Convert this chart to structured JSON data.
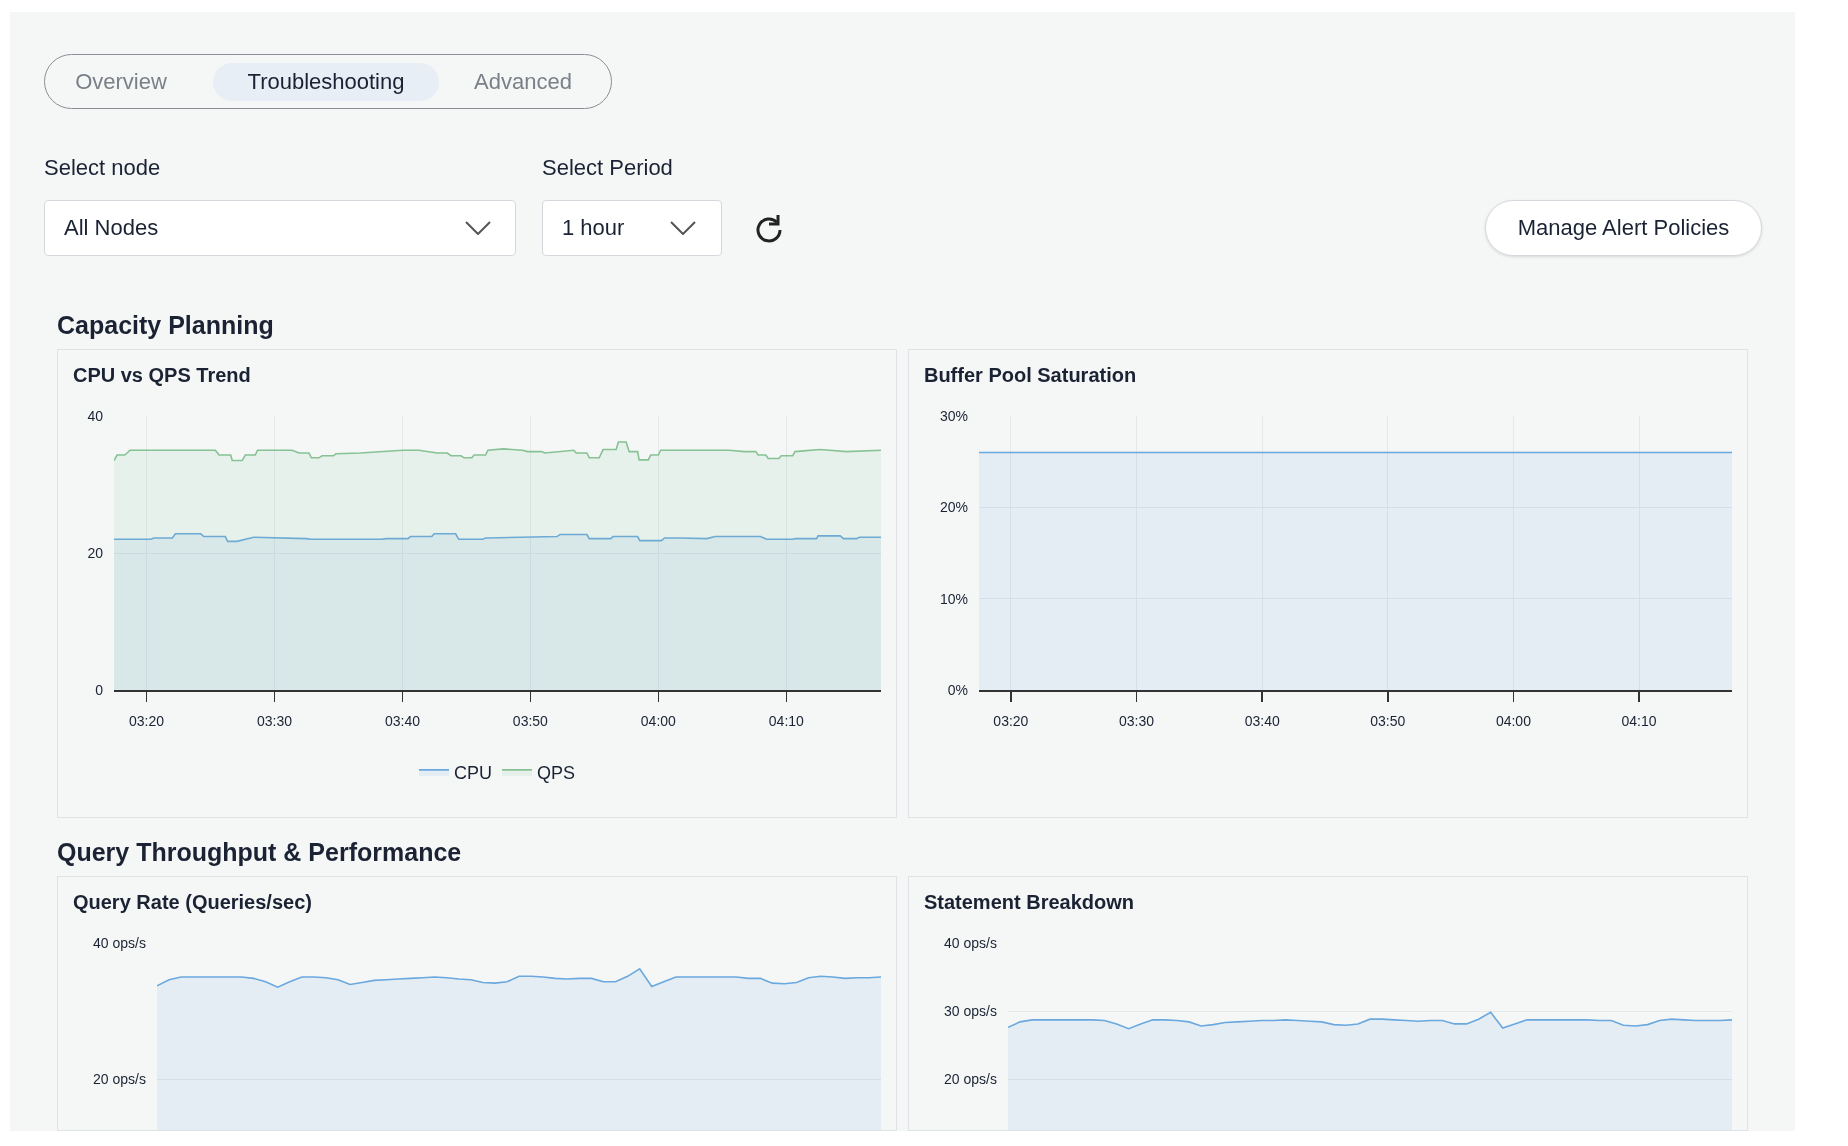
{
  "chart_data": [
    {
      "type": "other",
      "annotations": [
        "Overview",
        "Troubleshooting",
        "Advanced",
        "Select node",
        "All Nodes",
        "Select Period",
        "1 hour",
        "Manage Alert Policies",
        "Capacity Planning",
        "Query Throughput & Performance"
      ]
    },
    {
      "type": "area",
      "title": "CPU vs QPS Trend",
      "xlim": [
        3.291,
        4.29
      ],
      "xticks": [
        {
          "value": 3.3333,
          "label": "03:20"
        },
        {
          "value": 3.5,
          "label": "03:30"
        },
        {
          "value": 3.6667,
          "label": "03:40"
        },
        {
          "value": 3.8333,
          "label": "03:50"
        },
        {
          "value": 4,
          "label": "04:00"
        },
        {
          "value": 4.1667,
          "label": "04:10"
        }
      ],
      "ylim": [
        0,
        40
      ],
      "yticks": [
        0,
        20,
        40
      ],
      "grid": true,
      "legend": "bottom",
      "series": [
        {
          "name": "CPU",
          "color": "#6aa8de",
          "x": [
            3.291,
            3.339,
            3.343,
            3.367,
            3.371,
            3.404,
            3.408,
            3.436,
            3.439,
            3.451,
            3.473,
            3.541,
            3.548,
            3.639,
            3.646,
            3.674,
            3.677,
            3.705,
            3.708,
            3.736,
            3.74,
            3.771,
            3.775,
            3.868,
            3.872,
            3.907,
            3.91,
            3.938,
            3.941,
            3.973,
            3.976,
            4.004,
            4.008,
            4.029,
            4.063,
            4.074,
            4.133,
            4.141,
            4.175,
            4.178,
            4.206,
            4.208,
            4.237,
            4.241,
            4.258,
            4.262,
            4.29
          ],
          "values": [
            22.0,
            22.0,
            22.2,
            22.2,
            22.8,
            22.8,
            22.4,
            22.4,
            21.7,
            21.7,
            22.3,
            22.1,
            22.0,
            22.0,
            22.1,
            22.1,
            22.4,
            22.4,
            22.8,
            22.8,
            22.0,
            22.0,
            22.2,
            22.4,
            22.7,
            22.7,
            22.1,
            22.1,
            22.4,
            22.4,
            21.8,
            21.8,
            22.2,
            22.2,
            22.1,
            22.4,
            22.4,
            22.0,
            22.0,
            22.1,
            22.1,
            22.5,
            22.5,
            22.1,
            22.1,
            22.3,
            22.3
          ]
        },
        {
          "name": "QPS",
          "color": "#86c293",
          "x": [
            3.291,
            3.295,
            3.305,
            3.312,
            3.423,
            3.428,
            3.443,
            3.445,
            3.458,
            3.462,
            3.475,
            3.478,
            3.523,
            3.532,
            3.545,
            3.548,
            3.558,
            3.562,
            3.577,
            3.58,
            3.612,
            3.667,
            3.688,
            3.712,
            3.725,
            3.73,
            3.743,
            3.747,
            3.757,
            3.76,
            3.775,
            3.778,
            3.798,
            3.823,
            3.83,
            3.848,
            3.852,
            3.89,
            3.893,
            3.907,
            3.91,
            3.923,
            3.928,
            3.945,
            3.948,
            3.958,
            3.962,
            3.973,
            3.975,
            3.987,
            3.99,
            4.0,
            4.003,
            4.092,
            4.112,
            4.127,
            4.13,
            4.14,
            4.143,
            4.157,
            4.16,
            4.175,
            4.178,
            4.21,
            4.223,
            4.245,
            4.29
          ],
          "values": [
            33.5,
            34.3,
            34.3,
            35.0,
            35.0,
            34.3,
            34.3,
            33.5,
            33.5,
            34.3,
            34.3,
            35.0,
            35.0,
            34.6,
            34.6,
            33.9,
            33.9,
            34.2,
            34.2,
            34.5,
            34.6,
            35.0,
            35.0,
            34.6,
            34.6,
            34.2,
            34.2,
            33.9,
            33.9,
            34.3,
            34.3,
            35.0,
            35.2,
            35.0,
            34.8,
            34.8,
            34.6,
            35.0,
            34.6,
            34.6,
            33.9,
            33.9,
            35.1,
            35.1,
            36.2,
            36.2,
            34.8,
            34.8,
            33.6,
            33.6,
            34.3,
            34.3,
            35.0,
            35.0,
            34.8,
            34.8,
            34.3,
            34.3,
            33.8,
            33.8,
            34.2,
            34.2,
            34.8,
            35.1,
            35.0,
            34.8,
            35.0
          ]
        }
      ]
    },
    {
      "type": "area",
      "title": "Buffer Pool Saturation",
      "xlim": [
        3.291,
        4.29
      ],
      "xticks": [
        {
          "value": 3.3333,
          "label": "03:20"
        },
        {
          "value": 3.5,
          "label": "03:30"
        },
        {
          "value": 3.6667,
          "label": "03:40"
        },
        {
          "value": 3.8333,
          "label": "03:50"
        },
        {
          "value": 4,
          "label": "04:00"
        },
        {
          "value": 4.1667,
          "label": "04:10"
        }
      ],
      "ylim": [
        0,
        30
      ],
      "yticks": [
        {
          "value": 0,
          "label": "0%"
        },
        {
          "value": 10,
          "label": "10%"
        },
        {
          "value": 20,
          "label": "20%"
        },
        {
          "value": 30,
          "label": "30%"
        }
      ],
      "grid": true,
      "series": [
        {
          "color": "#6aa8de",
          "x": [
            3.291,
            4.29
          ],
          "values": [
            26,
            26
          ]
        }
      ]
    },
    {
      "type": "area",
      "title": "Query Rate (Queries/sec)",
      "categories": [
        null,
        null,
        null,
        null,
        null,
        null,
        null,
        null,
        null,
        null,
        null,
        null,
        null,
        null,
        null,
        null,
        null,
        null,
        null,
        null,
        null,
        null,
        null,
        null,
        null,
        null,
        null,
        null,
        null,
        null,
        null,
        null,
        null,
        null,
        null,
        null,
        null,
        null,
        null,
        null,
        null,
        null,
        null,
        null,
        null,
        null,
        null,
        null,
        null,
        null,
        null,
        null,
        null,
        null,
        null,
        null,
        null,
        null,
        null,
        null,
        null
      ],
      "ylim": [
        12.5,
        40
      ],
      "yticks": [
        {
          "value": 20,
          "label": "20 ops/s"
        },
        {
          "value": 40,
          "label": "40 ops/s"
        }
      ],
      "grid": "y",
      "tick_labels": "y",
      "series": [
        {
          "color": "#6aa8de",
          "values": [
            33.7,
            34.6,
            35.0,
            35.0,
            35.0,
            35.0,
            35.0,
            35.0,
            34.8,
            34.3,
            33.5,
            34.3,
            35.0,
            35.0,
            34.9,
            34.6,
            33.9,
            34.2,
            34.5,
            34.6,
            34.7,
            34.8,
            34.9,
            35.0,
            34.9,
            34.7,
            34.6,
            34.2,
            34.1,
            34.3,
            35.1,
            35.1,
            35.0,
            34.8,
            34.7,
            34.8,
            34.8,
            34.3,
            34.3,
            35.1,
            36.2,
            33.6,
            34.3,
            35.0,
            35.0,
            35.0,
            35.0,
            35.0,
            35.0,
            34.8,
            34.8,
            34.1,
            34.0,
            34.2,
            34.9,
            35.1,
            35.0,
            34.8,
            34.9,
            34.9,
            35.0
          ]
        }
      ]
    },
    {
      "type": "area",
      "title": "Statement Breakdown",
      "categories": [
        null,
        null,
        null,
        null,
        null,
        null,
        null,
        null,
        null,
        null,
        null,
        null,
        null,
        null,
        null,
        null,
        null,
        null,
        null,
        null,
        null,
        null,
        null,
        null,
        null,
        null,
        null,
        null,
        null,
        null,
        null,
        null,
        null,
        null,
        null,
        null,
        null,
        null,
        null,
        null,
        null,
        null,
        null,
        null,
        null,
        null,
        null,
        null,
        null,
        null,
        null,
        null,
        null,
        null,
        null,
        null,
        null,
        null,
        null,
        null,
        null
      ],
      "ylim": [
        12.5,
        40
      ],
      "yticks": [
        {
          "value": 20,
          "label": "20 ops/s"
        },
        {
          "value": 30,
          "label": "30 ops/s"
        },
        {
          "value": 40,
          "label": "40 ops/s"
        }
      ],
      "grid": "y",
      "tick_labels": "y",
      "series": [
        {
          "color": "#6aa8de",
          "values": [
            27.6,
            28.4,
            28.7,
            28.7,
            28.7,
            28.7,
            28.7,
            28.7,
            28.6,
            28.1,
            27.4,
            28.1,
            28.7,
            28.7,
            28.6,
            28.4,
            27.8,
            28.0,
            28.3,
            28.4,
            28.5,
            28.6,
            28.6,
            28.7,
            28.6,
            28.5,
            28.4,
            28.0,
            27.9,
            28.1,
            28.8,
            28.8,
            28.7,
            28.6,
            28.5,
            28.6,
            28.6,
            28.1,
            28.1,
            28.8,
            29.8,
            27.5,
            28.1,
            28.7,
            28.7,
            28.7,
            28.7,
            28.7,
            28.7,
            28.6,
            28.6,
            27.9,
            27.8,
            28.0,
            28.6,
            28.8,
            28.7,
            28.6,
            28.6,
            28.6,
            28.7
          ]
        }
      ]
    }
  ]
}
